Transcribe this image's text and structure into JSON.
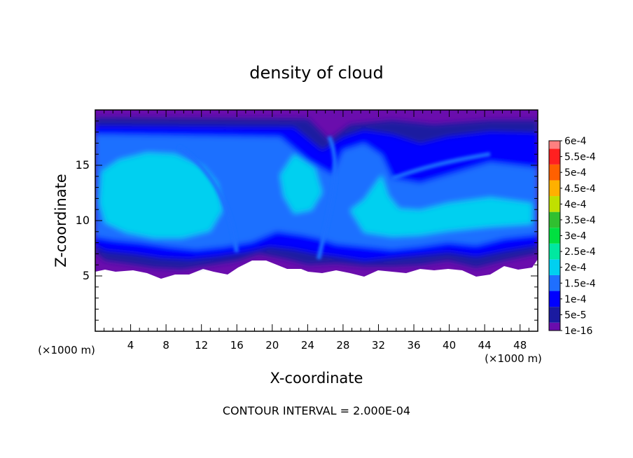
{
  "chart_data": {
    "type": "heatmap",
    "title": "density of cloud",
    "xlabel": "X-coordinate",
    "ylabel": "Z-coordinate",
    "x_unit_left": "(×1000 m)",
    "x_unit_right": "(×1000 m)",
    "xlim": [
      0,
      50
    ],
    "ylim": [
      0,
      20
    ],
    "x_ticks": [
      4,
      8,
      12,
      16,
      20,
      24,
      28,
      32,
      36,
      40,
      44,
      48
    ],
    "y_ticks": [
      5,
      10,
      15
    ],
    "footer": "CONTOUR INTERVAL = 2.000E-04",
    "colorbar": {
      "labels": [
        "1e-16",
        "5e-5",
        "1e-4",
        "1.5e-4",
        "2e-4",
        "2.5e-4",
        "3e-4",
        "3.5e-4",
        "4e-4",
        "4.5e-4",
        "5e-4",
        "5.5e-4",
        "6e-4"
      ],
      "colors": [
        "#6a0dad",
        "#1a1aa0",
        "#0000ff",
        "#1f6fff",
        "#00d0f0",
        "#00e8a0",
        "#00e040",
        "#30c030",
        "#c0e000",
        "#ffb000",
        "#ff6000",
        "#ff2020",
        "#ff8080"
      ]
    },
    "field_colors": {
      "cloud_base": "#6a0dad",
      "low": "#1a1aa0",
      "mid": "#0000ff",
      "high": "#1f6fff",
      "peak": "#00d0f0"
    }
  }
}
